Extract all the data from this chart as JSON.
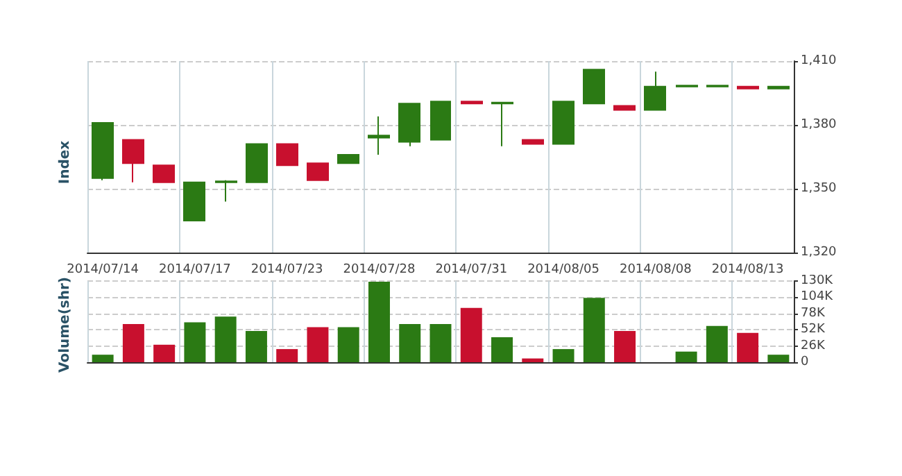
{
  "chart_data": [
    {
      "type": "candlestick",
      "ylabel": "Index",
      "categories": [
        "2014/07/14",
        null,
        null,
        "2014/07/17",
        null,
        null,
        "2014/07/23",
        null,
        null,
        "2014/07/28",
        null,
        null,
        "2014/07/31",
        null,
        null,
        "2014/08/05",
        null,
        null,
        "2014/08/08",
        null,
        null,
        "2014/08/13",
        null
      ],
      "ohlc": [
        [
          1355,
          1381,
          1354,
          1381
        ],
        [
          1373,
          1373,
          1353,
          1362
        ],
        [
          1361,
          1361,
          1353,
          1353
        ],
        [
          1335,
          1353,
          1335,
          1353
        ],
        [
          1353,
          1354,
          1344,
          1353.5
        ],
        [
          1353,
          1371,
          1353,
          1371
        ],
        [
          1371,
          1371,
          1361,
          1361
        ],
        [
          1362,
          1362,
          1354,
          1354
        ],
        [
          1362,
          1366,
          1362,
          1366
        ],
        [
          1374,
          1384,
          1366,
          1375
        ],
        [
          1372,
          1390,
          1370,
          1390
        ],
        [
          1373,
          1391,
          1373,
          1391
        ],
        [
          1391,
          1391,
          1390,
          1390
        ],
        [
          1390,
          1390.5,
          1370,
          1390.5
        ],
        [
          1373,
          1373,
          1371,
          1371
        ],
        [
          1371,
          1391,
          1371,
          1391
        ],
        [
          1390,
          1406,
          1390,
          1406
        ],
        [
          1389,
          1389,
          1387,
          1387
        ],
        [
          1387,
          1405,
          1387,
          1398
        ],
        [
          1398,
          1398.5,
          1398,
          1398.5
        ],
        [
          1398,
          1398.5,
          1398,
          1398.5
        ],
        [
          1398,
          1398,
          1397,
          1397
        ],
        [
          1397,
          1398,
          1397,
          1398
        ]
      ],
      "colors": [
        "#2b7a14",
        "#c8102e",
        "#c8102e",
        "#2b7a14",
        "#2b7a14",
        "#2b7a14",
        "#c8102e",
        "#c8102e",
        "#2b7a14",
        "#2b7a14",
        "#2b7a14",
        "#2b7a14",
        "#c8102e",
        "#2b7a14",
        "#c8102e",
        "#2b7a14",
        "#2b7a14",
        "#c8102e",
        "#2b7a14",
        "#2b7a14",
        "#2b7a14",
        "#c8102e",
        "#2b7a14"
      ],
      "ylim": [
        1320,
        1410
      ],
      "yticks": [
        {
          "value": 1320,
          "label": "1,320"
        },
        {
          "value": 1350,
          "label": "1,350"
        },
        {
          "value": 1380,
          "label": "1,380"
        },
        {
          "value": 1410,
          "label": "1,410"
        }
      ],
      "grid": true
    },
    {
      "type": "bar",
      "ylabel": "Volume(shr)",
      "categories": [
        "2014/07/14",
        null,
        null,
        "2014/07/17",
        null,
        null,
        "2014/07/23",
        null,
        null,
        "2014/07/28",
        null,
        null,
        "2014/07/31",
        null,
        null,
        "2014/08/05",
        null,
        null,
        "2014/08/08",
        null,
        null,
        "2014/08/13",
        null
      ],
      "values": [
        12,
        61,
        28,
        64,
        73,
        50,
        21,
        56,
        56,
        129,
        61,
        61,
        87,
        40,
        6,
        21,
        103,
        50,
        0,
        17,
        58,
        47,
        12
      ],
      "colors": [
        "#2b7a14",
        "#c8102e",
        "#c8102e",
        "#2b7a14",
        "#2b7a14",
        "#2b7a14",
        "#c8102e",
        "#c8102e",
        "#2b7a14",
        "#2b7a14",
        "#2b7a14",
        "#2b7a14",
        "#c8102e",
        "#2b7a14",
        "#c8102e",
        "#2b7a14",
        "#2b7a14",
        "#c8102e",
        "#2b7a14",
        "#2b7a14",
        "#2b7a14",
        "#c8102e",
        "#2b7a14"
      ],
      "ylim": [
        0,
        130
      ],
      "yticks": [
        {
          "value": 0,
          "label": "0"
        },
        {
          "value": 26,
          "label": "26K"
        },
        {
          "value": 52,
          "label": "52K"
        },
        {
          "value": 78,
          "label": "78K"
        },
        {
          "value": 104,
          "label": "104K"
        },
        {
          "value": 130,
          "label": "130K"
        }
      ],
      "grid": true,
      "tick_labels": "y"
    }
  ]
}
